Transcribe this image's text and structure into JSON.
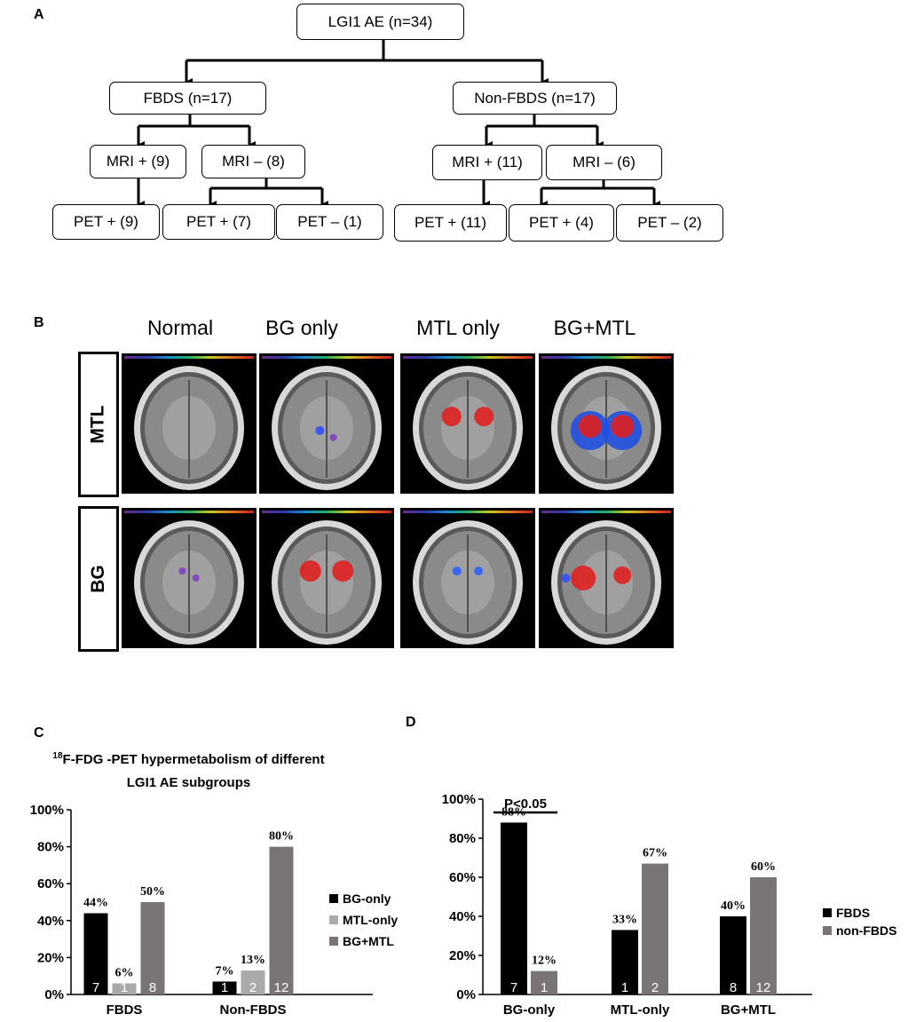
{
  "panel_labels": {
    "a": "A",
    "b": "B",
    "c": "C",
    "d": "D"
  },
  "flowchart": {
    "root": "LGI1 AE (n=34)",
    "fbds": "FBDS (n=17)",
    "nonfbds": "Non-FBDS (n=17)",
    "fbds_mri_pos": "MRI + (9)",
    "fbds_mri_neg": "MRI – (8)",
    "nonfbds_mri_pos": "MRI + (11)",
    "nonfbds_mri_neg": "MRI – (6)",
    "fbds_pet_1": "PET + (9)",
    "fbds_pet_2": "PET + (7)",
    "fbds_pet_3": "PET – (1)",
    "nonfbds_pet_1": "PET + (11)",
    "nonfbds_pet_2": "PET + (4)",
    "nonfbds_pet_3": "PET – (2)"
  },
  "panel_b": {
    "columns": [
      "Normal",
      "BG only",
      "MTL only",
      "BG+MTL"
    ],
    "rows": [
      "MTL",
      "BG"
    ]
  },
  "panel_c": {
    "title_sup": "18",
    "title_line1": "F-FDG -PET hypermetabolism of different",
    "title_line2": "LGI1 AE subgroups",
    "legend": [
      "BG-only",
      "MTL-only",
      "BG+MTL"
    ]
  },
  "panel_d": {
    "annotation": "P<0.05",
    "legend": [
      "FBDS",
      "non-FBDS"
    ]
  },
  "chart_data": [
    {
      "type": "bar",
      "title": "18F-FDG -PET hypermetabolism of different LGI1 AE subgroups",
      "categories": [
        "FBDS",
        "Non-FBDS"
      ],
      "series": [
        {
          "name": "BG-only",
          "values": [
            44,
            7
          ],
          "labels": [
            "44%",
            "7%"
          ],
          "counts": [
            "7",
            "1"
          ],
          "color": "#000000"
        },
        {
          "name": "MTL-only",
          "values": [
            6,
            13
          ],
          "labels": [
            "6%",
            "13%"
          ],
          "counts": [
            "1",
            "2"
          ],
          "color": "#aaaaaa"
        },
        {
          "name": "BG+MTL",
          "values": [
            50,
            80
          ],
          "labels": [
            "50%",
            "80%"
          ],
          "counts": [
            "8",
            "12"
          ],
          "color": "#7a7474"
        }
      ],
      "yticks": [
        "0%",
        "20%",
        "40%",
        "60%",
        "80%",
        "100%"
      ],
      "ylim": [
        0,
        100
      ],
      "legend_position": "right"
    },
    {
      "type": "bar",
      "categories": [
        "BG-only",
        "MTL-only",
        "BG+MTL"
      ],
      "series": [
        {
          "name": "FBDS",
          "values": [
            88,
            33,
            40
          ],
          "labels": [
            "88%",
            "33%",
            "40%"
          ],
          "counts": [
            "7",
            "1",
            "8"
          ],
          "color": "#000000"
        },
        {
          "name": "non-FBDS",
          "values": [
            12,
            67,
            60
          ],
          "labels": [
            "12%",
            "67%",
            "60%"
          ],
          "counts": [
            "1",
            "2",
            "12"
          ],
          "color": "#7a7474"
        }
      ],
      "yticks": [
        "0%",
        "20%",
        "40%",
        "60%",
        "80%",
        "100%"
      ],
      "ylim": [
        0,
        100
      ],
      "legend_position": "right"
    }
  ]
}
